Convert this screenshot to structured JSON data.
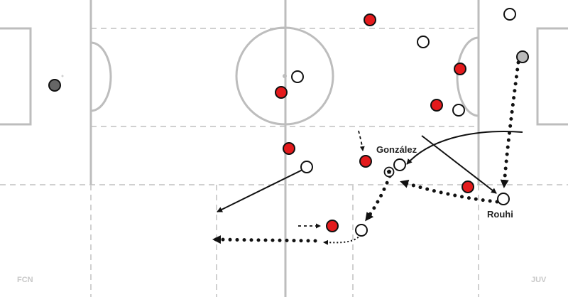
{
  "teams": {
    "left": "FCN",
    "right": "JUV"
  },
  "player_labels": {
    "gonzalez": "González",
    "rouhi": "Rouhi"
  },
  "colors": {
    "pitch_line": "#bdbdbd",
    "zone_line": "#d0d0d0",
    "red_team": "#e41a1c",
    "white_team": "#ffffff",
    "keeper_left": "#666666",
    "keeper_right": "#bbbbbb",
    "arrow": "#111111"
  },
  "icons": {
    "ball": "soccer-ball-icon"
  }
}
